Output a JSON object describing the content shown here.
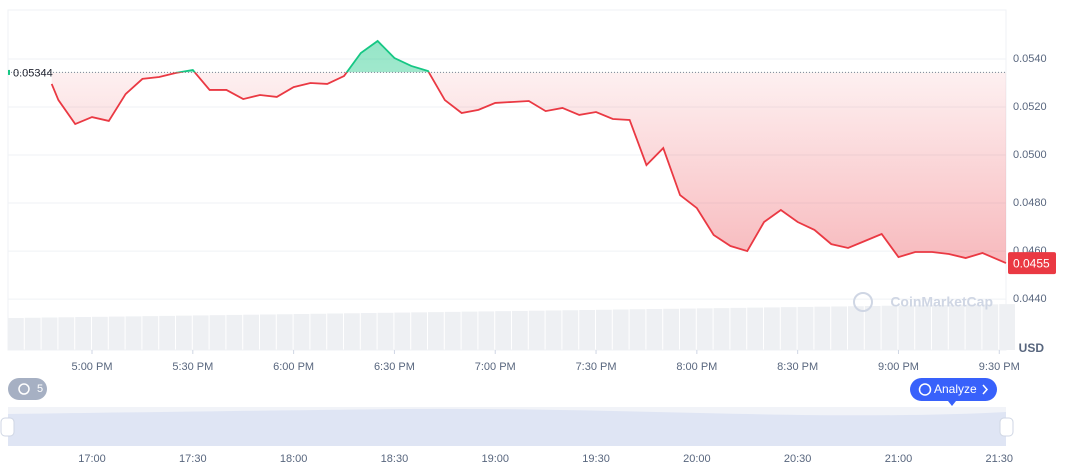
{
  "chart_data": {
    "type": "line",
    "x": [
      "16:48",
      "16:50",
      "16:55",
      "17:00",
      "17:05",
      "17:10",
      "17:15",
      "17:20",
      "17:25",
      "17:30",
      "17:35",
      "17:40",
      "17:45",
      "17:50",
      "17:55",
      "18:00",
      "18:05",
      "18:10",
      "18:15",
      "18:20",
      "18:25",
      "18:30",
      "18:35",
      "18:40",
      "18:45",
      "18:50",
      "18:55",
      "19:00",
      "19:05",
      "19:10",
      "19:15",
      "19:20",
      "19:25",
      "19:30",
      "19:35",
      "19:40",
      "19:45",
      "19:50",
      "19:55",
      "20:00",
      "20:05",
      "20:10",
      "20:15",
      "20:20",
      "20:25",
      "20:30",
      "20:35",
      "20:40",
      "20:45",
      "20:50",
      "20:55",
      "21:00",
      "21:05",
      "21:10",
      "21:15",
      "21:20",
      "21:25",
      "21:32"
    ],
    "values": [
      0.05296,
      0.05229,
      0.05129,
      0.05158,
      0.05142,
      0.05254,
      0.05317,
      0.05325,
      0.05342,
      0.05354,
      0.05271,
      0.05271,
      0.05233,
      0.0525,
      0.05242,
      0.05283,
      0.053,
      0.05296,
      0.05329,
      0.05425,
      0.05475,
      0.05404,
      0.05371,
      0.0535,
      0.05229,
      0.05175,
      0.05188,
      0.05217,
      0.05221,
      0.05225,
      0.05183,
      0.05196,
      0.05167,
      0.05179,
      0.0515,
      0.05146,
      0.04958,
      0.05029,
      0.04833,
      0.04779,
      0.04667,
      0.04621,
      0.046,
      0.04721,
      0.04771,
      0.04721,
      0.04688,
      0.04629,
      0.04613,
      0.04642,
      0.04671,
      0.04575,
      0.04596,
      0.04596,
      0.04588,
      0.04571,
      0.04592,
      0.0455
    ],
    "up_color": "#16c784",
    "down_color": "#ea3943",
    "baseline": {
      "value": 0.05344,
      "label": "0.05344"
    },
    "current_price_label": "0.0455",
    "xlim": [
      "16:35",
      "21:32"
    ],
    "ylim": [
      0.04188,
      0.05604
    ],
    "yticks": [
      {
        "value": 0.044,
        "label": "0.0440"
      },
      {
        "value": 0.046,
        "label": "0.0460"
      },
      {
        "value": 0.048,
        "label": "0.0480"
      },
      {
        "value": 0.05,
        "label": "0.0500"
      },
      {
        "value": 0.052,
        "label": "0.0520"
      },
      {
        "value": 0.054,
        "label": "0.0540"
      }
    ],
    "xticks": [
      {
        "value": "17:00",
        "label": "5:00 PM"
      },
      {
        "value": "17:30",
        "label": "5:30 PM"
      },
      {
        "value": "18:00",
        "label": "6:00 PM"
      },
      {
        "value": "18:30",
        "label": "6:30 PM"
      },
      {
        "value": "19:00",
        "label": "7:00 PM"
      },
      {
        "value": "19:30",
        "label": "7:30 PM"
      },
      {
        "value": "20:00",
        "label": "8:00 PM"
      },
      {
        "value": "20:30",
        "label": "8:30 PM"
      },
      {
        "value": "21:00",
        "label": "9:00 PM"
      },
      {
        "value": "21:30",
        "label": "9:30 PM"
      }
    ],
    "navigator_ticks": [
      "17:00",
      "17:30",
      "18:00",
      "18:30",
      "19:00",
      "19:30",
      "20:00",
      "20:30",
      "21:00",
      "21:30"
    ],
    "y_unit": "USD",
    "watermark": "CoinMarketCap",
    "grid": true
  },
  "controls": {
    "history_count": "5",
    "analyze_button": "Analyze"
  }
}
